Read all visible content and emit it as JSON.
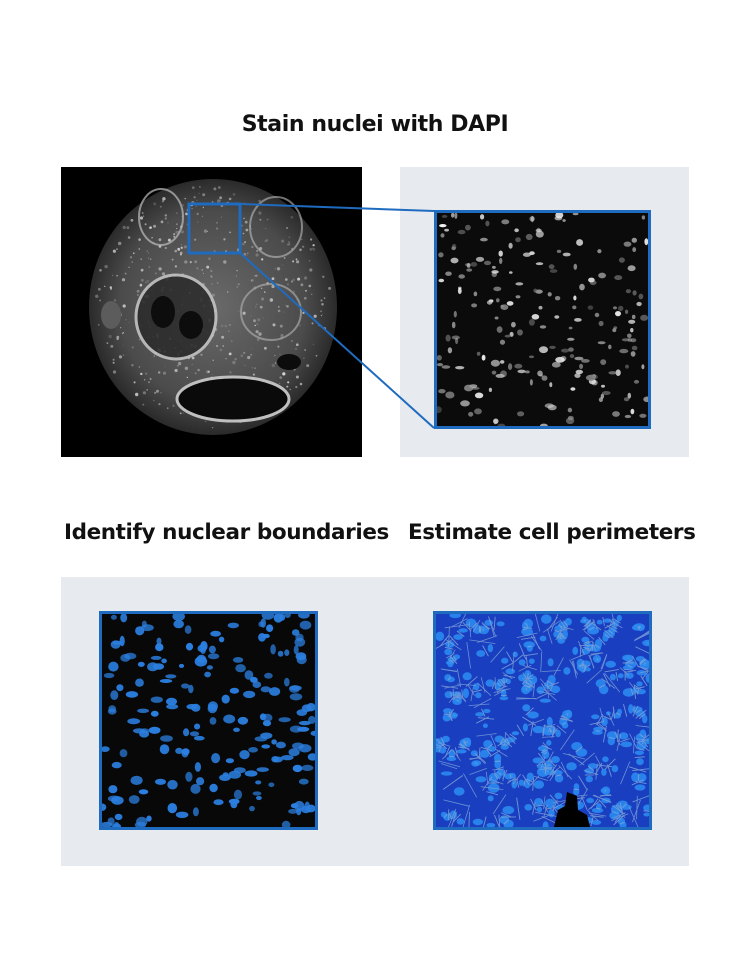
{
  "steps": {
    "stain": {
      "title": "Stain nuclei with DAPI"
    },
    "identify": {
      "title": "Identify nuclear boundaries"
    },
    "estimate": {
      "title": "Estimate cell perimeters"
    }
  },
  "colors": {
    "accent_blue": "#1f6bbf",
    "nucleus_blue": "#2b7fe0",
    "cell_fill_blue": "#1a3ec0",
    "cell_boundary": "#7aa0d8",
    "panel_background": "#e7eaee",
    "micrograph_background": "#000000"
  },
  "images": {
    "tissue_overview": "dapi-stained-tissue-section",
    "zoomed_region": "dapi-nuclei-closeup",
    "nuclei_segmentation": "segmented-nuclei-mask",
    "cell_segmentation": "cell-perimeter-mask"
  }
}
